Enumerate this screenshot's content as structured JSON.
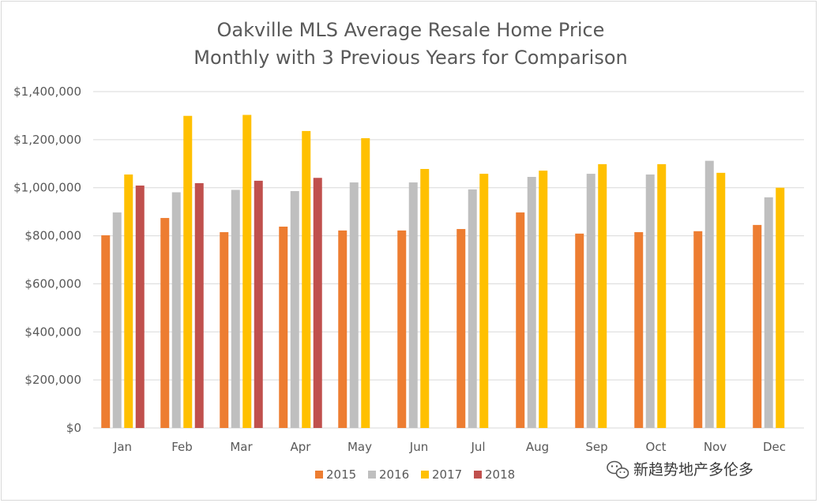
{
  "chart_data": {
    "type": "bar",
    "title_lines": [
      "Oakville MLS Average Resale Home Price",
      "Monthly with 3 Previous Years for Comparison"
    ],
    "xlabel": "",
    "ylabel": "",
    "categories": [
      "Jan",
      "Feb",
      "Mar",
      "Apr",
      "May",
      "Jun",
      "Jul",
      "Aug",
      "Sep",
      "Oct",
      "Nov",
      "Dec"
    ],
    "ylim": [
      0,
      1400000
    ],
    "yticks": [
      0,
      200000,
      400000,
      600000,
      800000,
      1000000,
      1200000,
      1400000
    ],
    "ytick_labels": [
      "$0",
      "$200,000",
      "$400,000",
      "$600,000",
      "$800,000",
      "$1,000,000",
      "$1,200,000",
      "$1,400,000"
    ],
    "grid": true,
    "legend_position": "bottom",
    "series": [
      {
        "name": "2015",
        "color": "#ed7d31",
        "values": [
          802000,
          874000,
          815000,
          838000,
          822000,
          822000,
          828000,
          897000,
          809000,
          815000,
          819000,
          845000
        ]
      },
      {
        "name": "2016",
        "color": "#bfbfbf",
        "values": [
          897000,
          981000,
          991000,
          986000,
          1022000,
          1022000,
          993000,
          1045000,
          1058000,
          1055000,
          1112000,
          960000
        ]
      },
      {
        "name": "2017",
        "color": "#ffc000",
        "values": [
          1055000,
          1299000,
          1303000,
          1236000,
          1206000,
          1078000,
          1058000,
          1071000,
          1098000,
          1098000,
          1062000,
          1000000
        ]
      },
      {
        "name": "2018",
        "color": "#c0504d",
        "values": [
          1009000,
          1019000,
          1029000,
          1041000,
          null,
          null,
          null,
          null,
          null,
          null,
          null,
          null
        ]
      }
    ]
  },
  "watermark": {
    "text": "新趋势地产多伦多",
    "icon": "wechat-icon"
  },
  "colors": {
    "gridline": "#d9d9d9",
    "axis": "#d9d9d9",
    "text": "#595959"
  }
}
